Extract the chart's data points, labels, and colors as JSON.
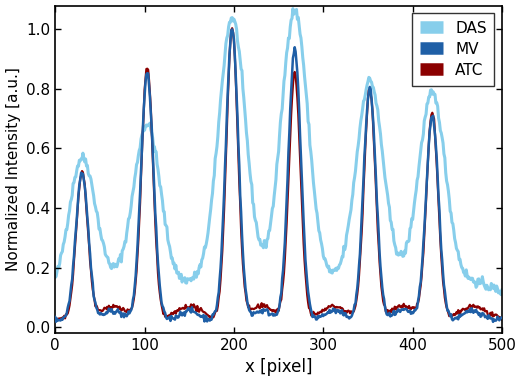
{
  "title": "",
  "xlabel": "x [pixel]",
  "ylabel": "Normalized Intensity [a.u.]",
  "xlim": [
    0,
    500
  ],
  "ylim": [
    -0.02,
    1.08
  ],
  "yticks": [
    0,
    0.2,
    0.4,
    0.6,
    0.8,
    1
  ],
  "xticks": [
    0,
    100,
    200,
    300,
    400,
    500
  ],
  "das_color": "#87CEEB",
  "mv_color": "#1f5fa6",
  "atc_color": "#8B0000",
  "das_lw": 2.2,
  "mv_lw": 1.8,
  "atc_lw": 1.6,
  "legend_labels": [
    "DAS",
    "MV",
    "ATC"
  ],
  "peaks": [
    30,
    103,
    198,
    268,
    352,
    422
  ],
  "peak_heights_das": [
    0.55,
    0.66,
    1.01,
    1.03,
    0.8,
    0.75
  ],
  "peak_heights_mv": [
    0.52,
    0.85,
    1.0,
    0.93,
    0.8,
    0.71
  ],
  "peak_heights_atc": [
    0.52,
    0.87,
    1.0,
    0.85,
    0.8,
    0.72
  ],
  "das_sigma": 15,
  "mv_sigma": 7,
  "atc_sigma": 6.5,
  "das_baseline": 0.1,
  "mv_baseline": 0.025,
  "atc_baseline": 0.025,
  "figsize": [
    5.22,
    3.82
  ],
  "dpi": 100
}
